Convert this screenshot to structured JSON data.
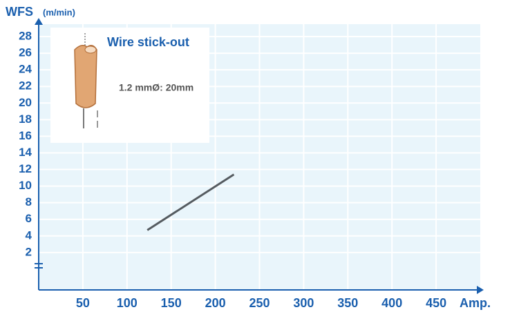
{
  "chart_data": {
    "type": "line",
    "y_label": "WFS",
    "y_unit": "(m/min)",
    "x_label": "Amp.",
    "annotations": {
      "title": "Wire stick-out",
      "text": "1.2 mmØ: 20mm"
    },
    "x": [
      123,
      221
    ],
    "series": [
      {
        "name": null,
        "color": "#555b60",
        "values": [
          4.7,
          11.4
        ]
      }
    ],
    "xlim": [
      0,
      500
    ],
    "xticks": [
      50,
      100,
      150,
      200,
      250,
      300,
      350,
      400,
      450
    ],
    "ylim": [
      -2.5,
      29.5
    ],
    "yticks": [
      2,
      4,
      6,
      8,
      10,
      12,
      14,
      16,
      18,
      20,
      22,
      24,
      26,
      28
    ],
    "grid": true
  }
}
